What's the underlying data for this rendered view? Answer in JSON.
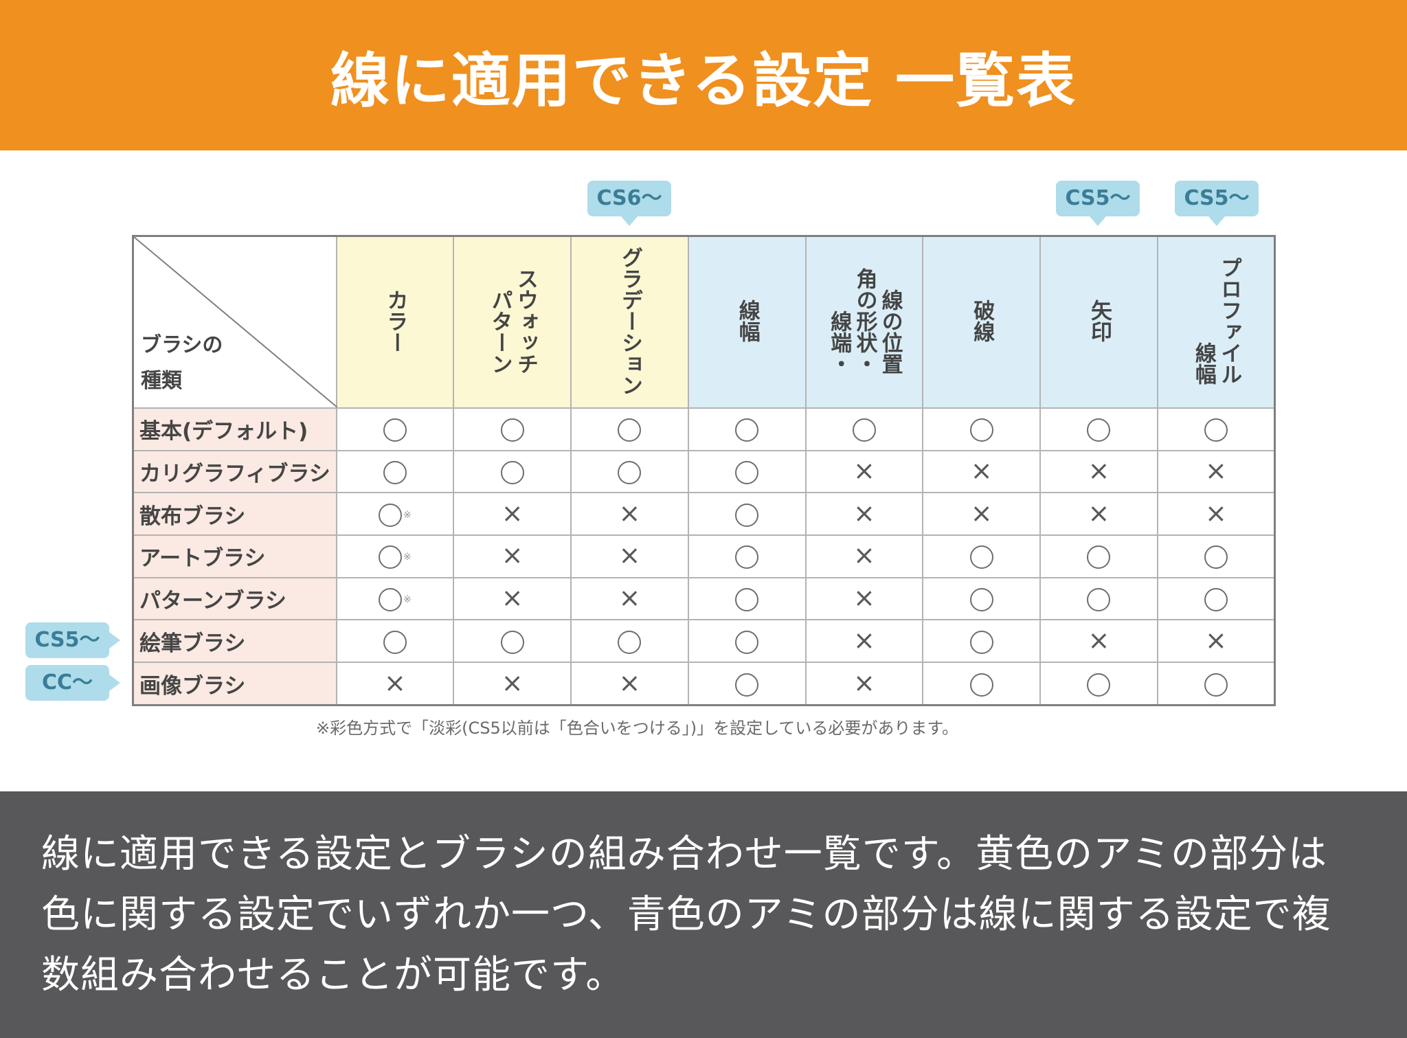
{
  "header": {
    "title": "線に適用できる設定 一覧表"
  },
  "table": {
    "corner_label_line1": "ブラシの",
    "corner_label_line2": "種類",
    "columns": [
      {
        "label": "カラー",
        "sub": "",
        "group": "yellow"
      },
      {
        "label": "パターン",
        "sub": "スウォッチ",
        "group": "yellow"
      },
      {
        "label": "グラデーション",
        "sub": "",
        "group": "yellow"
      },
      {
        "label": "線幅",
        "sub": "",
        "group": "blue"
      },
      {
        "label": "線端・",
        "sub": "角の形状・",
        "sub2": "線の位置",
        "group": "blue"
      },
      {
        "label": "破線",
        "sub": "",
        "group": "blue"
      },
      {
        "label": "矢印",
        "sub": "",
        "group": "blue"
      },
      {
        "label": "線幅",
        "sub": "プロファイル",
        "group": "blue"
      }
    ],
    "rows": [
      {
        "label": "基本(デフォルト)",
        "marks": [
          "○",
          "○",
          "○",
          "○",
          "○",
          "○",
          "○",
          "○"
        ]
      },
      {
        "label": "カリグラフィブラシ",
        "marks": [
          "○",
          "○",
          "○",
          "○",
          "×",
          "×",
          "×",
          "×"
        ]
      },
      {
        "label": "散布ブラシ",
        "marks": [
          "○※",
          "×",
          "×",
          "○",
          "×",
          "×",
          "×",
          "×"
        ]
      },
      {
        "label": "アートブラシ",
        "marks": [
          "○※",
          "×",
          "×",
          "○",
          "×",
          "○",
          "○",
          "○"
        ]
      },
      {
        "label": "パターンブラシ",
        "marks": [
          "○※",
          "×",
          "×",
          "○",
          "×",
          "○",
          "○",
          "○"
        ]
      },
      {
        "label": "絵筆ブラシ",
        "marks": [
          "○",
          "○",
          "○",
          "○",
          "×",
          "○",
          "×",
          "×"
        ]
      },
      {
        "label": "画像ブラシ",
        "marks": [
          "×",
          "×",
          "×",
          "○",
          "×",
          "○",
          "○",
          "○"
        ]
      }
    ],
    "note_symbol": "※"
  },
  "callouts": {
    "gradation": "CS6〜",
    "arrow": "CS5〜",
    "profile": "CS5〜",
    "bristle": "CS5〜",
    "image": "CC〜"
  },
  "footnote": "※彩色方式で「淡彩(CS5以前は「色合いをつける」)」を設定している必要があります。",
  "description": "線に適用できる設定とブラシの組み合わせ一覧です。黄色のアミの部分は色に関する設定でいずれか一つ、青色のアミの部分は線に関する設定で複数組み合わせることが可能です。",
  "colors": {
    "header_bg": "#f0901e",
    "yellow_header": "#fcf8d4",
    "blue_header": "#dbeef8",
    "row_label_bg": "#fbe9e3",
    "callout_bg": "#aedceb",
    "desc_bg": "#58575a"
  }
}
